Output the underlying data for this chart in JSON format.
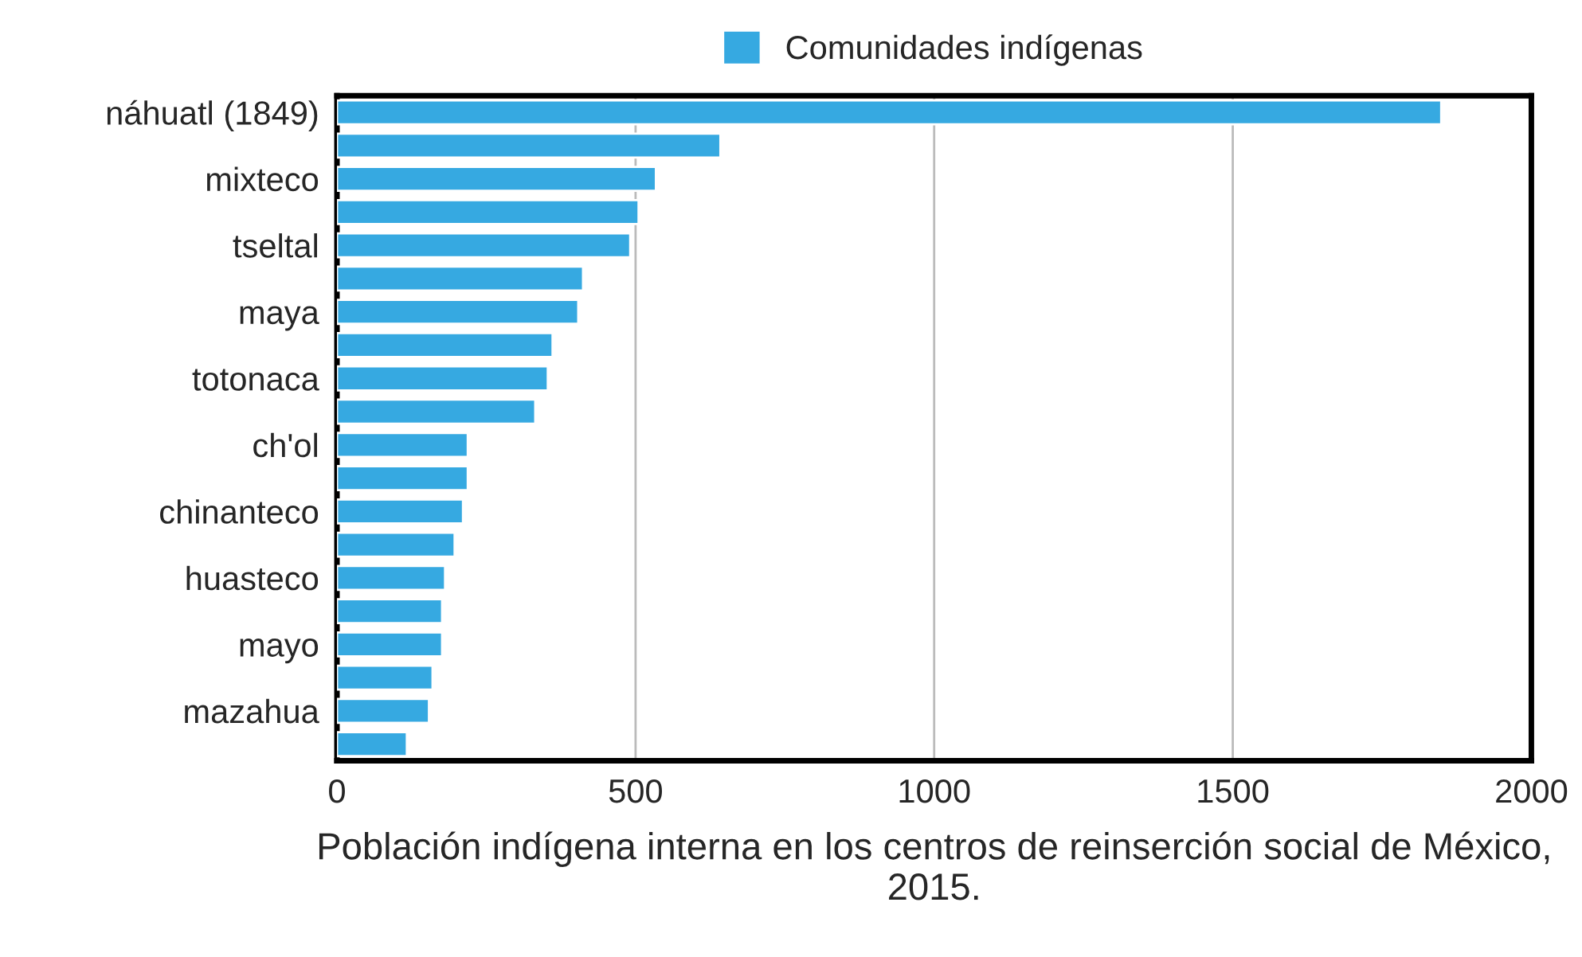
{
  "chart_data": {
    "type": "bar",
    "orientation": "horizontal",
    "xlabel": "Población indígena interna en los centros de reinserción social de México, 2015.",
    "categories": [
      "náhuatl (1849)",
      null,
      "mixteco",
      null,
      "tseltal",
      null,
      "maya",
      null,
      "totonaca",
      null,
      "ch'ol",
      null,
      "chinanteco",
      null,
      "huasteco",
      null,
      "mayo",
      null,
      "mazahua",
      null
    ],
    "series": [
      {
        "name": "Comunidades indígenas",
        "color": "#36a9e1",
        "values": [
          1849,
          642,
          534,
          505,
          491,
          412,
          404,
          361,
          353,
          332,
          219,
          219,
          211,
          197,
          181,
          176,
          176,
          160,
          154,
          117
        ]
      }
    ],
    "xlim": [
      0,
      2000
    ],
    "xticks": [
      0,
      500,
      1000,
      1500,
      2000
    ],
    "grid": "x",
    "legend": "top"
  }
}
